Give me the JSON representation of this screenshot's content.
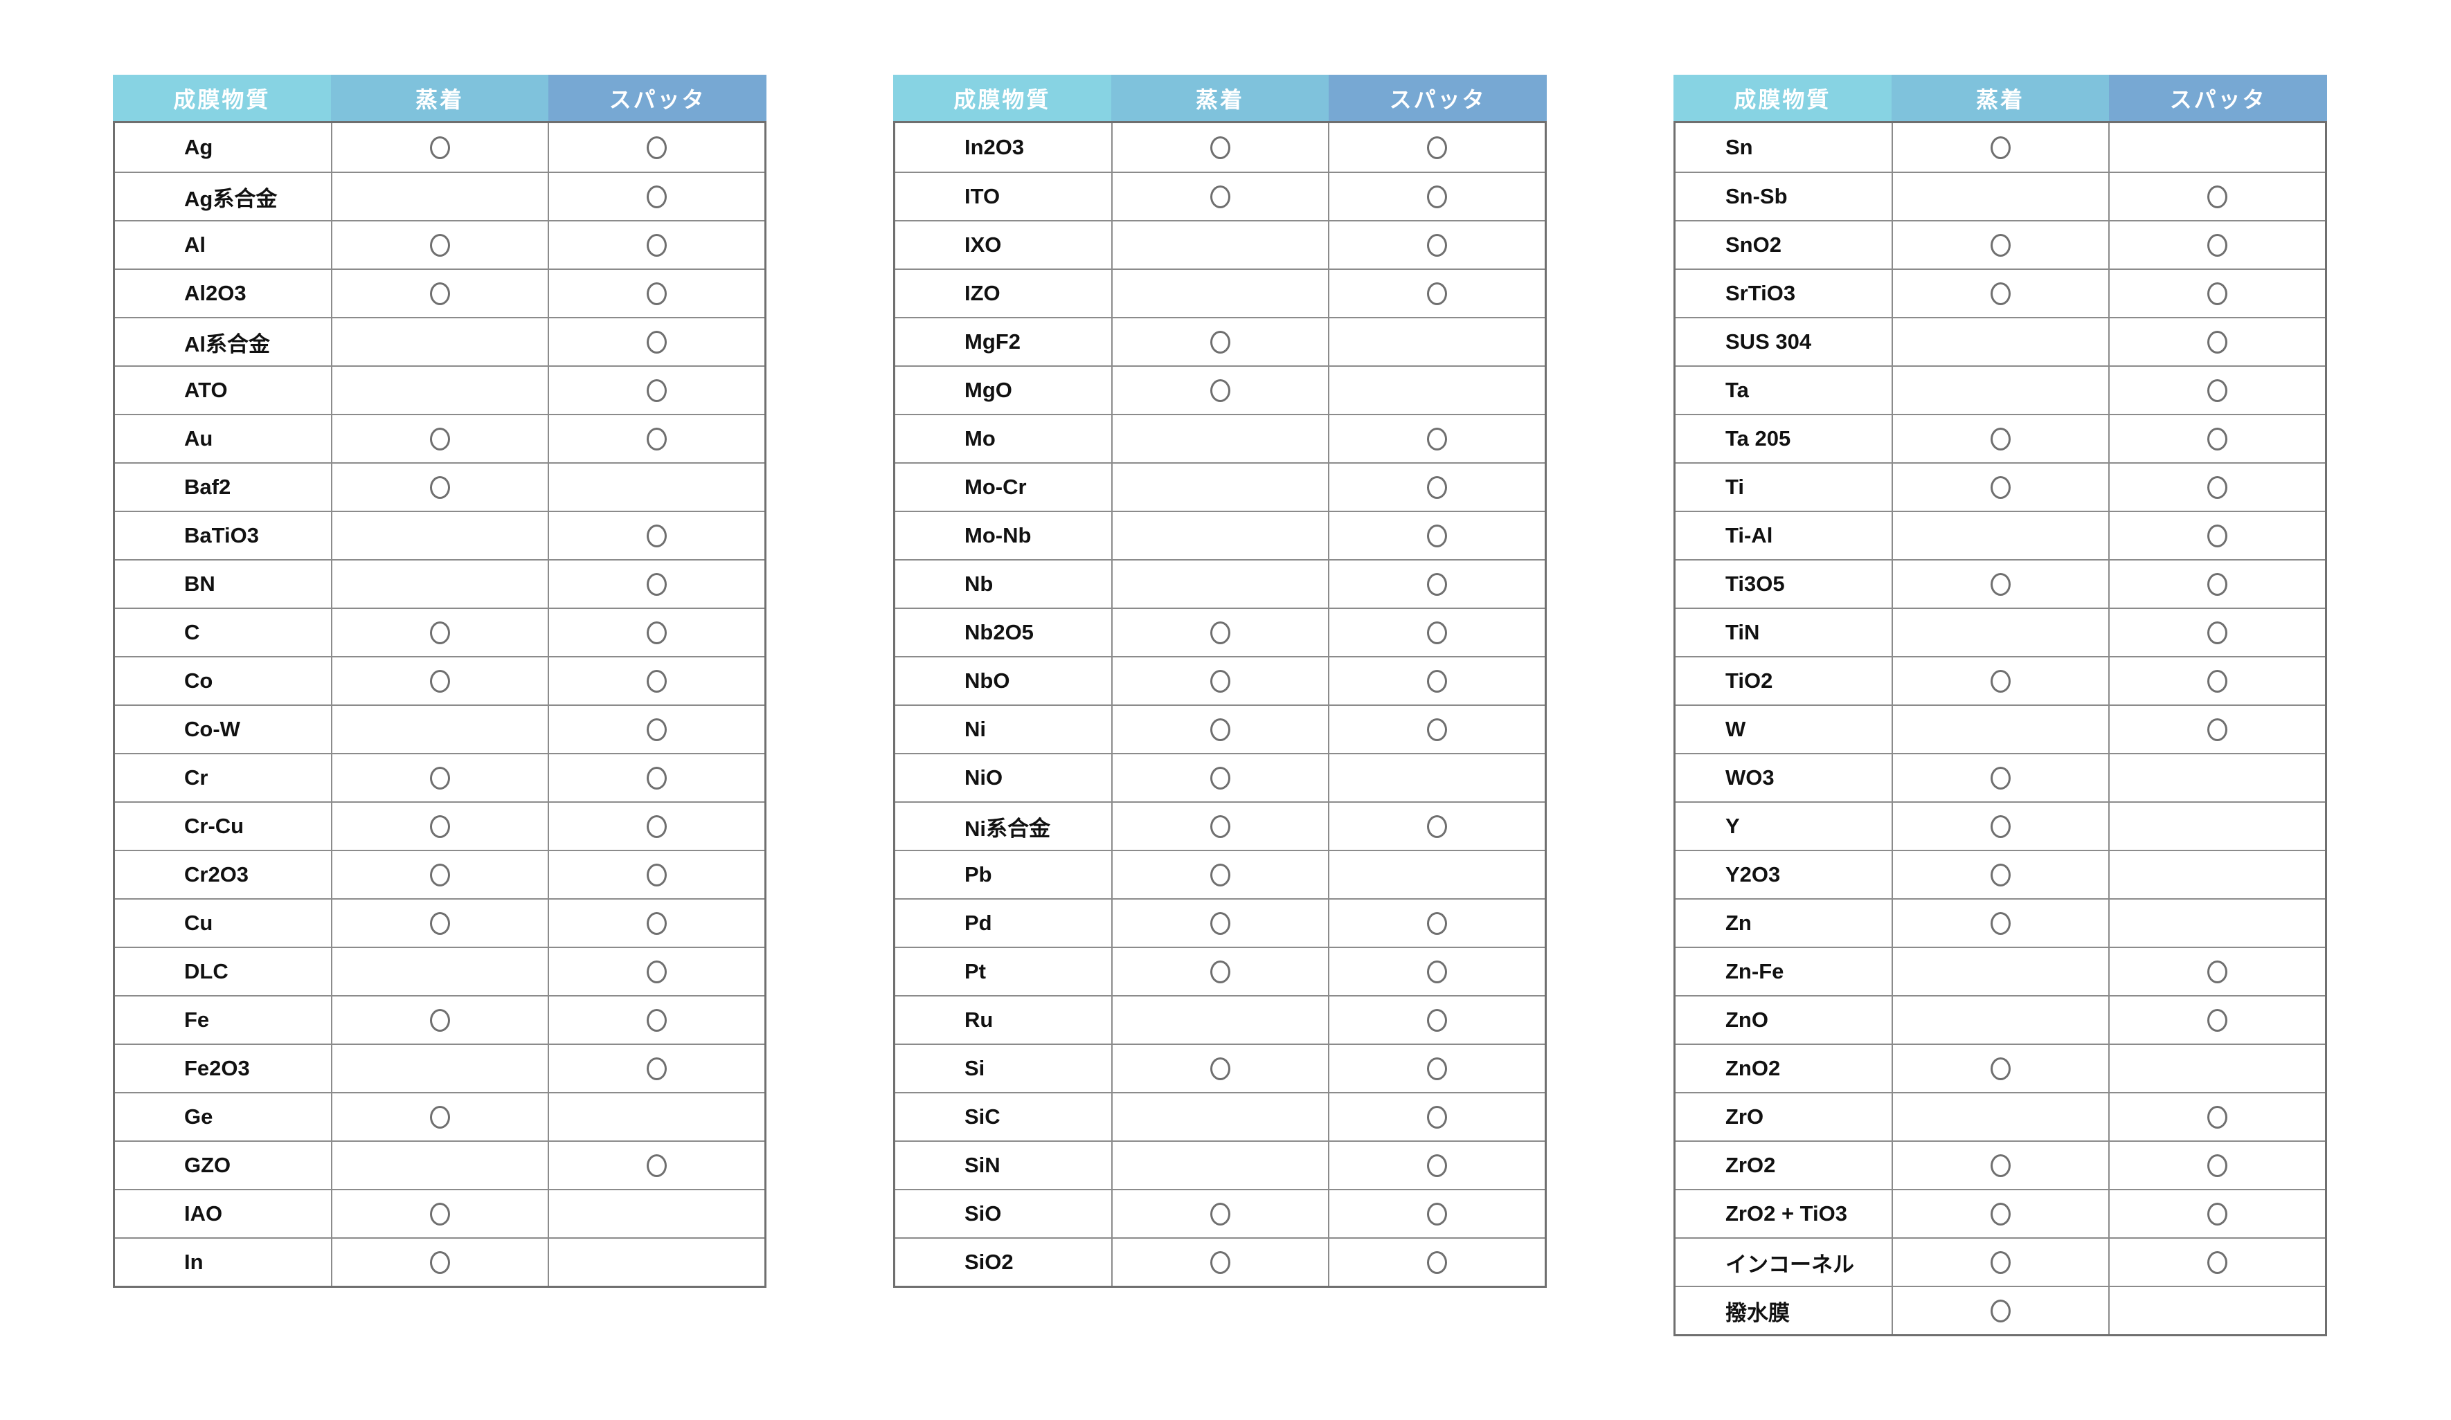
{
  "columns": {
    "material": "成膜物質",
    "evaporation": "蒸着",
    "sputtering": "スパッタ"
  },
  "mark_symbol": "○",
  "colors": {
    "header_material_bg": "#87d3e3",
    "header_evaporation_bg": "#7fc2dc",
    "header_sputtering_bg": "#77a8d3",
    "header_text": "#ffffff",
    "grid_line": "#8b8b8b",
    "outer_border": "#6f6f6f",
    "mark_stroke": "#6f6f6f",
    "material_text": "#111111",
    "page_background": "#ffffff"
  },
  "tables": [
    {
      "rows": [
        {
          "material": "Ag",
          "evaporation": true,
          "sputtering": true
        },
        {
          "material": "Ag系合金",
          "evaporation": false,
          "sputtering": true
        },
        {
          "material": "Al",
          "evaporation": true,
          "sputtering": true
        },
        {
          "material": "Al2O3",
          "evaporation": true,
          "sputtering": true
        },
        {
          "material": "Al系合金",
          "evaporation": false,
          "sputtering": true
        },
        {
          "material": "ATO",
          "evaporation": false,
          "sputtering": true
        },
        {
          "material": "Au",
          "evaporation": true,
          "sputtering": true
        },
        {
          "material": "Baf2",
          "evaporation": true,
          "sputtering": false
        },
        {
          "material": "BaTiO3",
          "evaporation": false,
          "sputtering": true
        },
        {
          "material": "BN",
          "evaporation": false,
          "sputtering": true
        },
        {
          "material": "C",
          "evaporation": true,
          "sputtering": true
        },
        {
          "material": "Co",
          "evaporation": true,
          "sputtering": true
        },
        {
          "material": "Co-W",
          "evaporation": false,
          "sputtering": true
        },
        {
          "material": "Cr",
          "evaporation": true,
          "sputtering": true
        },
        {
          "material": "Cr-Cu",
          "evaporation": true,
          "sputtering": true
        },
        {
          "material": "Cr2O3",
          "evaporation": true,
          "sputtering": true
        },
        {
          "material": "Cu",
          "evaporation": true,
          "sputtering": true
        },
        {
          "material": "DLC",
          "evaporation": false,
          "sputtering": true
        },
        {
          "material": "Fe",
          "evaporation": true,
          "sputtering": true
        },
        {
          "material": "Fe2O3",
          "evaporation": false,
          "sputtering": true
        },
        {
          "material": "Ge",
          "evaporation": true,
          "sputtering": false
        },
        {
          "material": "GZO",
          "evaporation": false,
          "sputtering": true
        },
        {
          "material": "IAO",
          "evaporation": true,
          "sputtering": false
        },
        {
          "material": "In",
          "evaporation": true,
          "sputtering": false
        }
      ]
    },
    {
      "rows": [
        {
          "material": "In2O3",
          "evaporation": true,
          "sputtering": true
        },
        {
          "material": "ITO",
          "evaporation": true,
          "sputtering": true
        },
        {
          "material": "IXO",
          "evaporation": false,
          "sputtering": true
        },
        {
          "material": "IZO",
          "evaporation": false,
          "sputtering": true
        },
        {
          "material": "MgF2",
          "evaporation": true,
          "sputtering": false
        },
        {
          "material": "MgO",
          "evaporation": true,
          "sputtering": false
        },
        {
          "material": "Mo",
          "evaporation": false,
          "sputtering": true
        },
        {
          "material": "Mo-Cr",
          "evaporation": false,
          "sputtering": true
        },
        {
          "material": "Mo-Nb",
          "evaporation": false,
          "sputtering": true
        },
        {
          "material": "Nb",
          "evaporation": false,
          "sputtering": true
        },
        {
          "material": "Nb2O5",
          "evaporation": true,
          "sputtering": true
        },
        {
          "material": "NbO",
          "evaporation": true,
          "sputtering": true
        },
        {
          "material": "Ni",
          "evaporation": true,
          "sputtering": true
        },
        {
          "material": "NiO",
          "evaporation": true,
          "sputtering": false
        },
        {
          "material": "Ni系合金",
          "evaporation": true,
          "sputtering": true
        },
        {
          "material": "Pb",
          "evaporation": true,
          "sputtering": false
        },
        {
          "material": "Pd",
          "evaporation": true,
          "sputtering": true
        },
        {
          "material": "Pt",
          "evaporation": true,
          "sputtering": true
        },
        {
          "material": "Ru",
          "evaporation": false,
          "sputtering": true
        },
        {
          "material": "Si",
          "evaporation": true,
          "sputtering": true
        },
        {
          "material": "SiC",
          "evaporation": false,
          "sputtering": true
        },
        {
          "material": "SiN",
          "evaporation": false,
          "sputtering": true
        },
        {
          "material": "SiO",
          "evaporation": true,
          "sputtering": true
        },
        {
          "material": "SiO2",
          "evaporation": true,
          "sputtering": true
        }
      ]
    },
    {
      "rows": [
        {
          "material": "Sn",
          "evaporation": true,
          "sputtering": false
        },
        {
          "material": "Sn-Sb",
          "evaporation": false,
          "sputtering": true
        },
        {
          "material": "SnO2",
          "evaporation": true,
          "sputtering": true
        },
        {
          "material": "SrTiO3",
          "evaporation": true,
          "sputtering": true
        },
        {
          "material": "SUS 304",
          "evaporation": false,
          "sputtering": true
        },
        {
          "material": "Ta",
          "evaporation": false,
          "sputtering": true
        },
        {
          "material": "Ta 205",
          "evaporation": true,
          "sputtering": true
        },
        {
          "material": "Ti",
          "evaporation": true,
          "sputtering": true
        },
        {
          "material": "Ti-Al",
          "evaporation": false,
          "sputtering": true
        },
        {
          "material": "Ti3O5",
          "evaporation": true,
          "sputtering": true
        },
        {
          "material": "TiN",
          "evaporation": false,
          "sputtering": true
        },
        {
          "material": "TiO2",
          "evaporation": true,
          "sputtering": true
        },
        {
          "material": "W",
          "evaporation": false,
          "sputtering": true
        },
        {
          "material": "WO3",
          "evaporation": true,
          "sputtering": false
        },
        {
          "material": "Y",
          "evaporation": true,
          "sputtering": false
        },
        {
          "material": "Y2O3",
          "evaporation": true,
          "sputtering": false
        },
        {
          "material": "Zn",
          "evaporation": true,
          "sputtering": false
        },
        {
          "material": "Zn-Fe",
          "evaporation": false,
          "sputtering": true
        },
        {
          "material": "ZnO",
          "evaporation": false,
          "sputtering": true
        },
        {
          "material": "ZnO2",
          "evaporation": true,
          "sputtering": false
        },
        {
          "material": "ZrO",
          "evaporation": false,
          "sputtering": true
        },
        {
          "material": "ZrO2",
          "evaporation": true,
          "sputtering": true
        },
        {
          "material": "ZrO2 + TiO3",
          "evaporation": true,
          "sputtering": true
        },
        {
          "material": "インコーネル",
          "evaporation": true,
          "sputtering": true
        },
        {
          "material": "撥水膜",
          "evaporation": true,
          "sputtering": false
        }
      ]
    }
  ]
}
